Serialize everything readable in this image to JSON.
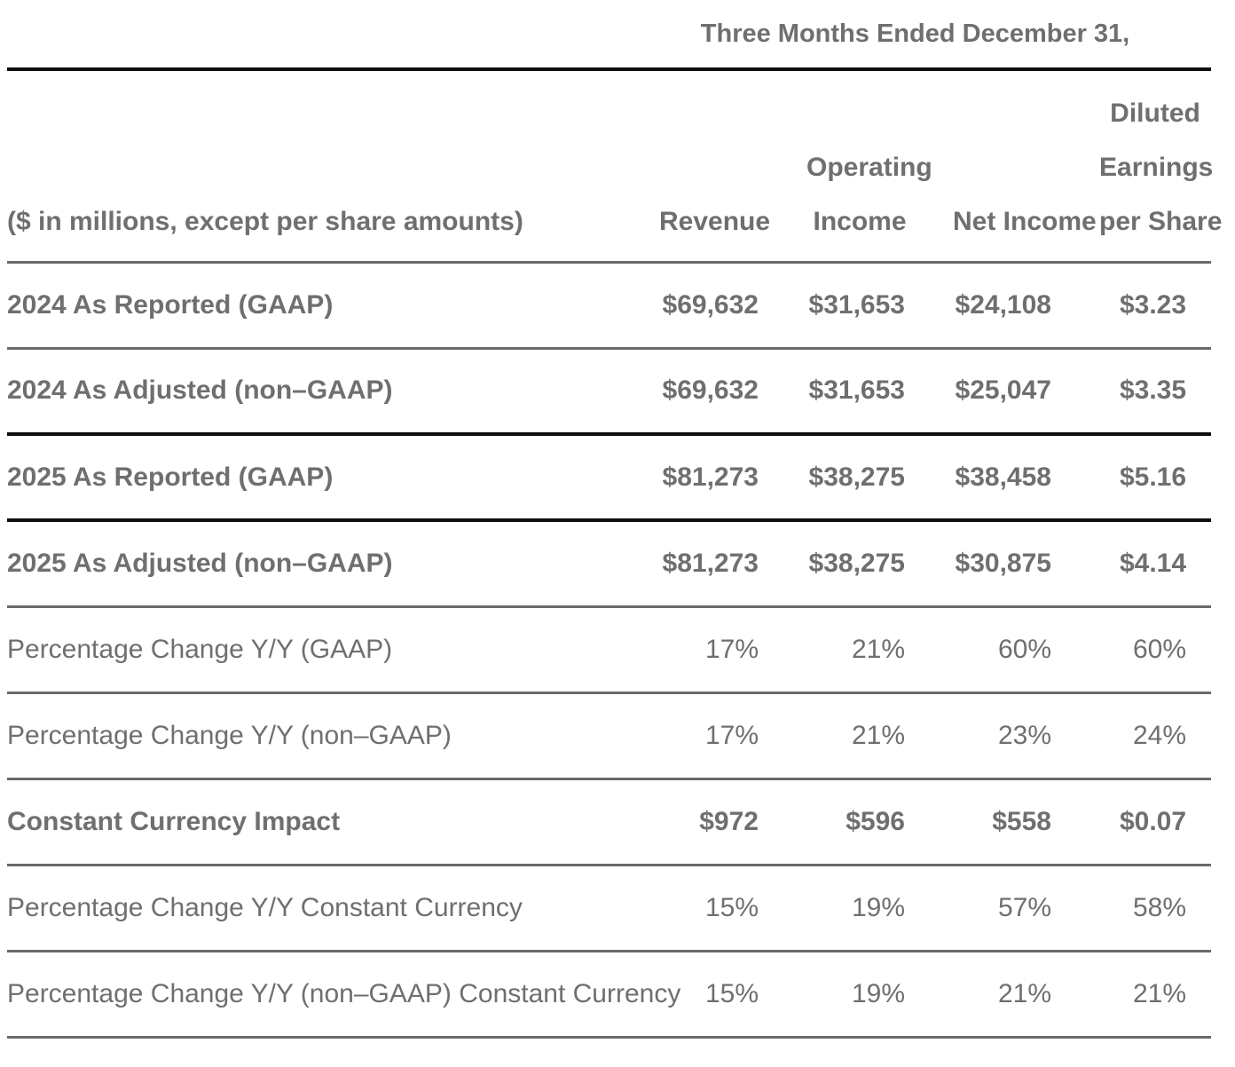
{
  "colors": {
    "text": "#6f6f6f",
    "line_black": "#0f0f0f",
    "line_gray": "#6a6a6a",
    "background": "#ffffff"
  },
  "table": {
    "period_header": "Three Months Ended December 31,",
    "row_label_note": "($ in millions, except per share amounts)",
    "columns": [
      {
        "name": "revenue",
        "lines": [
          "Revenue"
        ]
      },
      {
        "name": "operating-income",
        "lines": [
          "Operating",
          "Income"
        ]
      },
      {
        "name": "net-income",
        "lines": [
          "Net Income"
        ]
      },
      {
        "name": "diluted-eps",
        "lines": [
          "Diluted",
          "Earnings",
          "per Share"
        ]
      }
    ],
    "rows": [
      {
        "label": "2024 As Reported (GAAP)",
        "values": [
          "$69,632",
          "$31,653",
          "$24,108",
          "$3.23"
        ],
        "bold": true,
        "separator": "gray"
      },
      {
        "label": "2024 As Adjusted (non–GAAP)",
        "values": [
          "$69,632",
          "$31,653",
          "$25,047",
          "$3.35"
        ],
        "bold": true,
        "separator": "black"
      },
      {
        "label": "2025 As Reported (GAAP)",
        "values": [
          "$81,273",
          "$38,275",
          "$38,458",
          "$5.16"
        ],
        "bold": true,
        "separator": "black"
      },
      {
        "label": "2025 As Adjusted (non–GAAP)",
        "values": [
          "$81,273",
          "$38,275",
          "$30,875",
          "$4.14"
        ],
        "bold": true,
        "separator": "gray"
      },
      {
        "label": "Percentage Change Y/Y (GAAP)",
        "values": [
          "17%",
          "21%",
          "60%",
          "60%"
        ],
        "bold": false,
        "separator": "gray"
      },
      {
        "label": "Percentage Change Y/Y (non–GAAP)",
        "values": [
          "17%",
          "21%",
          "23%",
          "24%"
        ],
        "bold": false,
        "separator": "gray"
      },
      {
        "label": "Constant Currency Impact",
        "values": [
          "$972",
          "$596",
          "$558",
          "$0.07"
        ],
        "bold": true,
        "separator": "gray"
      },
      {
        "label": "Percentage Change Y/Y Constant Currency",
        "values": [
          "15%",
          "19%",
          "57%",
          "58%"
        ],
        "bold": false,
        "separator": "gray"
      },
      {
        "label": "Percentage Change Y/Y (non–GAAP) Constant Currency",
        "values": [
          "15%",
          "19%",
          "21%",
          "21%"
        ],
        "bold": false,
        "separator": "gray"
      }
    ]
  }
}
